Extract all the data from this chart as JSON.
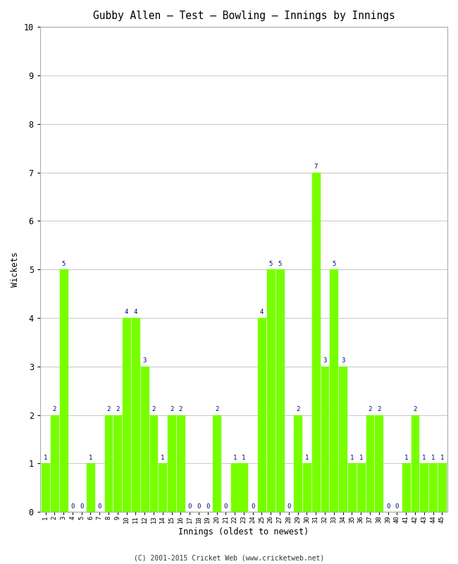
{
  "title": "Gubby Allen – Test – Bowling – Innings by Innings",
  "xlabel": "Innings (oldest to newest)",
  "ylabel": "Wickets",
  "bar_color": "#77ff00",
  "label_color": "#000080",
  "background_color": "#ffffff",
  "grid_color": "#cccccc",
  "ylim": [
    0,
    10
  ],
  "yticks": [
    0,
    1,
    2,
    3,
    4,
    5,
    6,
    7,
    8,
    9,
    10
  ],
  "copyright": "(C) 2001-2015 Cricket Web (www.cricketweb.net)",
  "innings": [
    1,
    2,
    3,
    4,
    5,
    6,
    7,
    8,
    9,
    10,
    11,
    12,
    13,
    14,
    15,
    16,
    17,
    18,
    19,
    20,
    21,
    22,
    23,
    24,
    25,
    26,
    27,
    28,
    29,
    30,
    31,
    32,
    33,
    34,
    35,
    36,
    37,
    38,
    39,
    40,
    41,
    42,
    43,
    44,
    45
  ],
  "wickets": [
    1,
    2,
    5,
    0,
    0,
    1,
    0,
    2,
    2,
    4,
    4,
    3,
    2,
    1,
    2,
    2,
    0,
    0,
    0,
    2,
    0,
    1,
    1,
    0,
    4,
    5,
    5,
    0,
    2,
    1,
    7,
    3,
    5,
    3,
    1,
    1,
    2,
    2,
    0,
    0,
    1,
    2,
    1,
    1,
    1
  ]
}
